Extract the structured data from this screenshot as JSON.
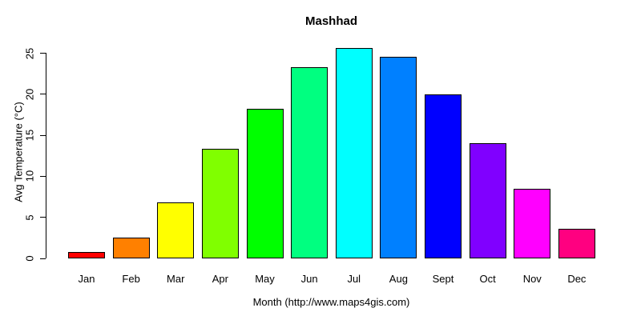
{
  "chart_data": {
    "type": "bar",
    "title": "Mashhad",
    "xlabel": "Month (http://www.maps4gis.com)",
    "ylabel": "Avg Temperature (°C)",
    "categories": [
      "Jan",
      "Feb",
      "Mar",
      "Apr",
      "May",
      "Jun",
      "Jul",
      "Aug",
      "Sept",
      "Oct",
      "Nov",
      "Dec"
    ],
    "values": [
      0.8,
      2.5,
      6.8,
      13.4,
      18.2,
      23.3,
      25.6,
      24.6,
      20.0,
      14.0,
      8.5,
      3.6
    ],
    "bar_colors": [
      "#FF0000",
      "#FF8000",
      "#FFFF00",
      "#80FF00",
      "#00FF00",
      "#00FF80",
      "#00FFFF",
      "#0080FF",
      "#0000FF",
      "#8000FF",
      "#FF00FF",
      "#FF0080"
    ],
    "bar_border_color": "#000000",
    "yticks": [
      0,
      5,
      10,
      15,
      20,
      25
    ],
    "ylim": [
      0,
      26
    ],
    "grid": false,
    "legend": "none"
  }
}
